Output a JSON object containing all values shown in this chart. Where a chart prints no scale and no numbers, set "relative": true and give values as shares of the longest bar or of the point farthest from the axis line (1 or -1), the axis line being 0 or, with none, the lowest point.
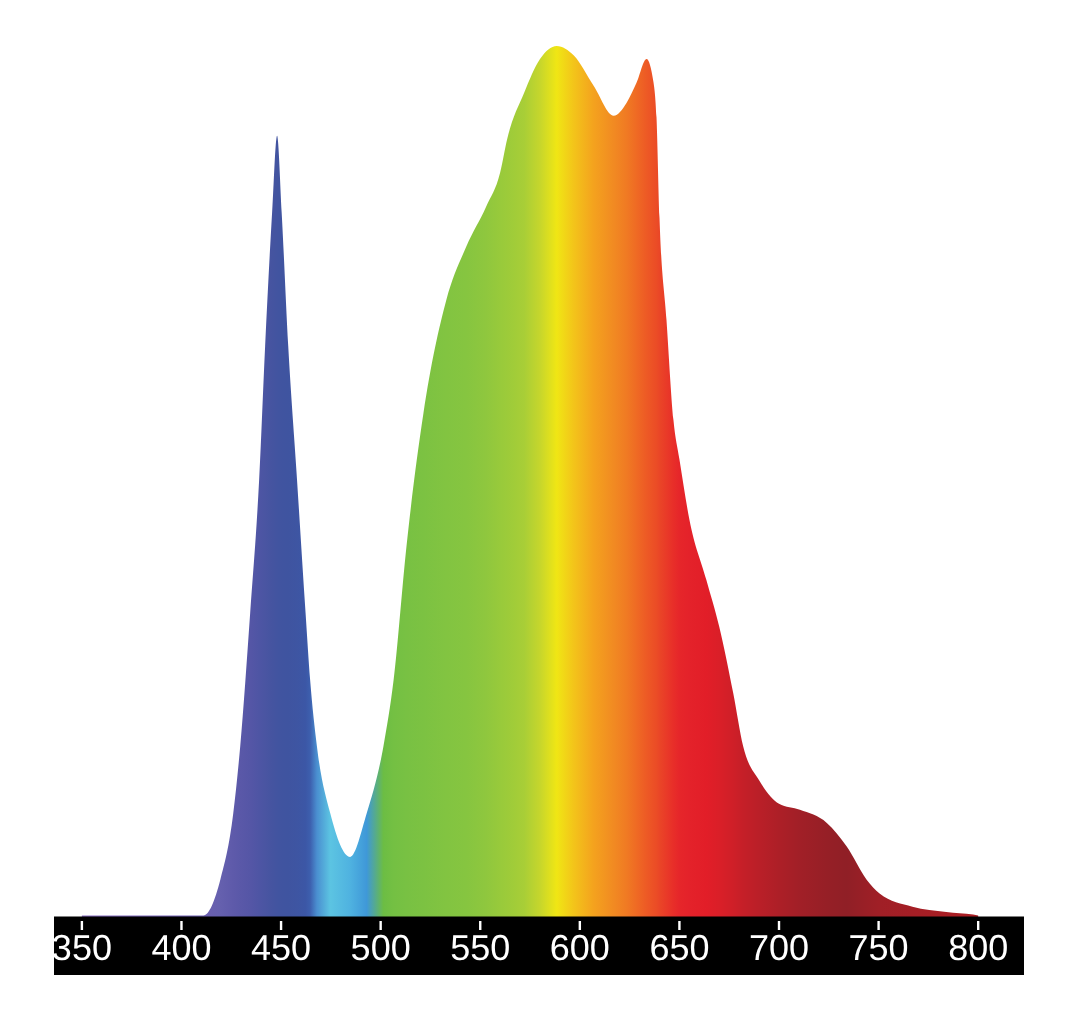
{
  "chart_data": {
    "type": "area",
    "relative": true,
    "x": [
      350,
      411,
      419.5,
      426,
      429.5,
      434.5,
      439,
      442,
      445.5,
      448,
      450.3,
      453.6,
      458,
      462.3,
      464.6,
      468,
      474.7,
      484.7,
      493,
      501.4,
      506.5,
      513,
      521.5,
      533,
      543,
      553,
      560,
      563.5,
      572,
      580,
      588.4,
      597,
      607,
      617,
      623.5,
      628.5,
      633.5,
      637,
      638.5,
      640,
      643.5,
      647,
      650,
      655,
      663.5,
      670,
      677,
      682,
      690,
      700,
      710.5,
      724,
      734,
      744,
      750.5,
      767,
      784,
      797.5,
      800
    ],
    "values": [
      0.003,
      0.003,
      0.044,
      0.12,
      0.197,
      0.35,
      0.503,
      0.656,
      0.809,
      0.897,
      0.809,
      0.656,
      0.503,
      0.35,
      0.273,
      0.197,
      0.12,
      0.07,
      0.12,
      0.197,
      0.273,
      0.427,
      0.579,
      0.709,
      0.77,
      0.816,
      0.855,
      0.893,
      0.946,
      0.985,
      1.0,
      0.989,
      0.954,
      0.92,
      0.935,
      0.958,
      0.985,
      0.958,
      0.918,
      0.803,
      0.686,
      0.571,
      0.526,
      0.457,
      0.388,
      0.334,
      0.258,
      0.197,
      0.158,
      0.131,
      0.124,
      0.109,
      0.082,
      0.044,
      0.028,
      0.013,
      0.007,
      0.004,
      0.003
    ],
    "colors": [
      "#8a6fc0",
      "#6c5fb0",
      "#6560ae",
      "#5e5aaa",
      "#5a58a8",
      "#5556a6",
      "#4e55a4",
      "#4a55a2",
      "#4554a0",
      "#4254a0",
      "#4054a0",
      "#3f54a0",
      "#3e55a2",
      "#3c57a6",
      "#3d5fae",
      "#4a8fd0",
      "#5cc4e2",
      "#4fb2e0",
      "#3f98d8",
      "#6cbd44",
      "#74c043",
      "#78c143",
      "#7cc242",
      "#82c441",
      "#86c540",
      "#8fc73e",
      "#98ca3b",
      "#9ccb3a",
      "#a8ce37",
      "#c6d62c",
      "#f0e614",
      "#f3c41a",
      "#f4a21e",
      "#f18a22",
      "#f07a23",
      "#ef6a24",
      "#ed5a25",
      "#ec5026",
      "#eb4c26",
      "#ea4627",
      "#e93a28",
      "#e82e29",
      "#e6262a",
      "#e4222a",
      "#e21e28",
      "#da1f28",
      "#cf1f28",
      "#c51f28",
      "#ba1f28",
      "#ad1f27",
      "#a11f27",
      "#961f26",
      "#901f26",
      "#9a1f26",
      "#a01f26",
      "#a41e25",
      "#a81e24",
      "#aa1e24",
      "#aa1e24"
    ],
    "xlim": [
      336,
      823
    ],
    "xticks": [
      350,
      400,
      450,
      500,
      550,
      600,
      650,
      700,
      750,
      800
    ]
  }
}
